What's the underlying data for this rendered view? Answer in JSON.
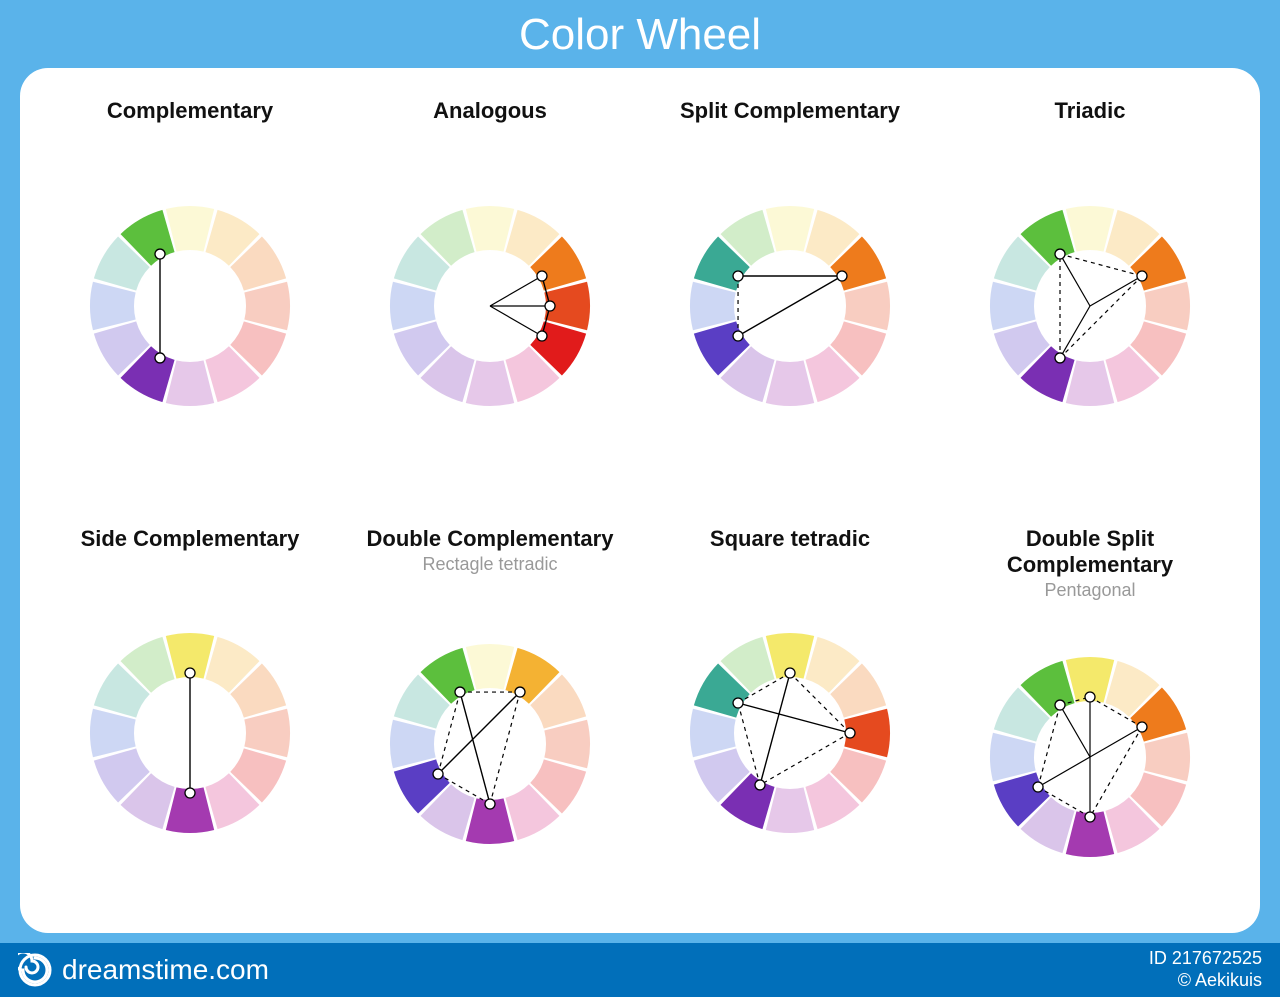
{
  "page_title": "Color Wheel",
  "background_color": "#5ab3ea",
  "card_background": "#ffffff",
  "footer": {
    "background": "#016fba",
    "brand": "dreamstime.com",
    "id_label": "ID 217672525",
    "author": "© Aekikuis"
  },
  "wheel": {
    "outer_radius": 100,
    "inner_radius": 56,
    "segment_gap_deg": 2,
    "faded_alpha": 0.28,
    "node_radius": 5,
    "node_distance": 60,
    "line_color": "#000000",
    "dash": "4 4",
    "colors_full": [
      "#f4e96b",
      "#f4b233",
      "#ee7b1c",
      "#e54a1f",
      "#e11b1b",
      "#d63384",
      "#a43ab0",
      "#7a2fb3",
      "#5a3ec4",
      "#4a6fd6",
      "#3aa994",
      "#5cbf3d"
    ]
  },
  "schemes": [
    {
      "title": "Complementary",
      "subtitle": "",
      "highlight": [
        11,
        7
      ],
      "solid_lines": [
        [
          11,
          7
        ]
      ],
      "dashed_lines": [],
      "center_lines": []
    },
    {
      "title": "Analogous",
      "subtitle": "",
      "highlight": [
        2,
        3,
        4
      ],
      "solid_lines": [
        [
          2,
          3
        ],
        [
          3,
          4
        ]
      ],
      "dashed_lines": [],
      "center_lines": [
        2,
        3,
        4
      ]
    },
    {
      "title": "Split Complementary",
      "subtitle": "",
      "highlight": [
        2,
        8,
        10
      ],
      "solid_lines": [
        [
          2,
          8
        ],
        [
          2,
          10
        ]
      ],
      "dashed_lines": [
        [
          8,
          10
        ]
      ],
      "center_lines": []
    },
    {
      "title": "Triadic",
      "subtitle": "",
      "highlight": [
        2,
        7,
        11
      ],
      "solid_lines": [],
      "dashed_lines": [
        [
          2,
          7
        ],
        [
          7,
          11
        ],
        [
          11,
          2
        ]
      ],
      "center_lines": [
        2,
        7,
        11
      ]
    },
    {
      "title": "Side Complementary",
      "subtitle": "",
      "highlight": [
        0,
        6
      ],
      "solid_lines": [
        [
          0,
          6
        ]
      ],
      "dashed_lines": [],
      "center_lines": []
    },
    {
      "title": "Double Complementary",
      "subtitle": "Rectagle tetradic",
      "highlight": [
        1,
        6,
        8,
        11
      ],
      "solid_lines": [
        [
          11,
          6
        ],
        [
          1,
          8
        ]
      ],
      "dashed_lines": [
        [
          11,
          1
        ],
        [
          1,
          6
        ],
        [
          6,
          8
        ],
        [
          8,
          11
        ]
      ],
      "center_lines": []
    },
    {
      "title": "Square tetradic",
      "subtitle": "",
      "highlight": [
        0,
        3,
        7,
        10
      ],
      "solid_lines": [
        [
          0,
          7
        ],
        [
          3,
          10
        ]
      ],
      "dashed_lines": [
        [
          0,
          3
        ],
        [
          3,
          7
        ],
        [
          7,
          10
        ],
        [
          10,
          0
        ]
      ],
      "center_lines": []
    },
    {
      "title": "Double Split Complementary",
      "subtitle": "Pentagonal",
      "highlight": [
        0,
        2,
        6,
        8,
        11
      ],
      "solid_lines": [],
      "dashed_lines": [
        [
          0,
          2
        ],
        [
          2,
          6
        ],
        [
          6,
          8
        ],
        [
          8,
          11
        ],
        [
          11,
          0
        ]
      ],
      "center_lines": [
        0,
        2,
        6,
        8,
        11
      ]
    }
  ]
}
